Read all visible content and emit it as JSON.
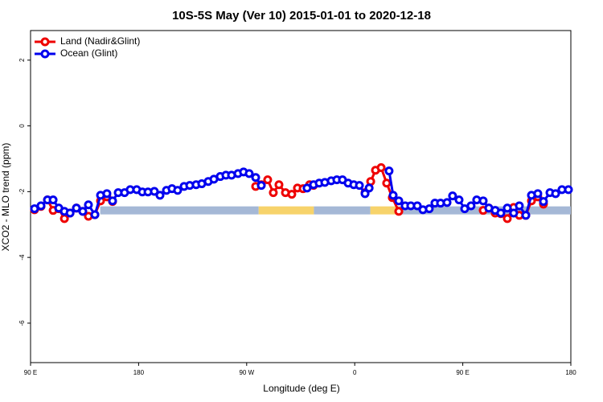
{
  "chart_data": {
    "type": "line",
    "title": "10S-5S May (Ver 10)   2015-01-01 to 2020-12-18",
    "x_label": "Longitude (deg E)",
    "y_label": "XCO2 - MLO trend (ppm)",
    "xlim": [
      90,
      540
    ],
    "xticks": [
      {
        "value": 90,
        "label": "90 E"
      },
      180,
      {
        "value": 270,
        "label": "90 W"
      },
      {
        "value": 360,
        "label": "0"
      },
      {
        "value": 450,
        "label": "90 E"
      },
      {
        "value": 540,
        "label": "180"
      }
    ],
    "ylim": [
      -7.2,
      2.9
    ],
    "yticks": [
      2,
      0,
      -2,
      -4,
      -6
    ],
    "legend": "top-left",
    "band_y": -2.57,
    "bands": [
      {
        "start": 148,
        "end": 280,
        "color": "#a5b8d6"
      },
      {
        "start": 280,
        "end": 326,
        "color": "#f7d36b"
      },
      {
        "start": 326,
        "end": 373,
        "color": "#a5b8d6"
      },
      {
        "start": 373,
        "end": 396,
        "color": "#f7d36b"
      },
      {
        "start": 396,
        "end": 540,
        "color": "#a5b8d6"
      }
    ],
    "series": [
      {
        "name": "Land (Nadir&Glint)",
        "color": "#ee0000",
        "x": [
          93.3,
          98.7,
          104.1,
          108.8,
          113.5,
          118.2,
          122.9,
          128.2,
          133.5,
          138.2,
          143.6,
          148.3,
          153.6,
          158.3,
          null,
          277.5,
          282.2,
          287.5,
          292.2,
          296.9,
          302.3,
          307.6,
          312.3,
          317.0,
          322.4,
          325.7,
          null,
          368.6,
          373.3,
          377.3,
          382.0,
          386.6,
          391.3,
          396.7,
          null,
          467.0,
          471.7,
          477.0,
          481.7,
          487.1,
          492.4,
          497.1,
          502.5,
          507.2,
          512.5,
          517.2
        ],
        "values": [
          -2.55,
          -2.45,
          -2.25,
          -2.57,
          -2.52,
          -2.82,
          -2.65,
          -2.5,
          -2.6,
          -2.75,
          -2.7,
          -2.28,
          -2.16,
          -2.3,
          null,
          -1.84,
          -1.79,
          -1.64,
          -2.03,
          -1.79,
          -2.03,
          -2.08,
          -1.89,
          -1.91,
          -1.79,
          -1.81,
          null,
          -2.03,
          -1.69,
          -1.35,
          -1.27,
          -1.74,
          -2.18,
          -2.6,
          null,
          -2.57,
          -2.5,
          -2.65,
          -2.67,
          -2.82,
          -2.48,
          -2.72,
          -2.72,
          -2.28,
          -2.16,
          -2.38
        ]
      },
      {
        "name": "Ocean (Glint)",
        "color": "#0000ee",
        "x": [
          93.3,
          98.7,
          104.1,
          108.8,
          113.5,
          118.2,
          122.9,
          128.2,
          133.5,
          138.2,
          143.6,
          148.3,
          153.6,
          158.3,
          163.0,
          168.3,
          173.0,
          178.4,
          183.1,
          187.8,
          193.1,
          197.8,
          203.2,
          207.8,
          212.5,
          217.9,
          222.6,
          227.9,
          232.6,
          238.0,
          242.7,
          248.0,
          252.7,
          257.4,
          262.8,
          267.4,
          272.1,
          277.5,
          282.2,
          null,
          320.3,
          325.7,
          330.4,
          335.1,
          340.4,
          345.1,
          349.8,
          354.5,
          359.2,
          363.9,
          368.6,
          372.0,
          null,
          388.6,
          392.0,
          396.7,
          402.0,
          406.7,
          412.1,
          416.8,
          422.1,
          426.8,
          431.5,
          436.9,
          441.5,
          446.9,
          451.6,
          456.9,
          461.6,
          467.0,
          471.7,
          477.0,
          481.7,
          487.1,
          492.4,
          497.1,
          502.5,
          507.2,
          512.5,
          517.2,
          522.6,
          527.3,
          532.6,
          538.0
        ],
        "values": [
          -2.52,
          -2.43,
          -2.25,
          -2.25,
          -2.5,
          -2.6,
          -2.65,
          -2.5,
          -2.6,
          -2.4,
          -2.7,
          -2.11,
          -2.06,
          -2.28,
          -2.03,
          -2.03,
          -1.94,
          -1.94,
          -2.01,
          -2.01,
          -1.99,
          -2.11,
          -1.96,
          -1.91,
          -1.96,
          -1.84,
          -1.81,
          -1.79,
          -1.76,
          -1.69,
          -1.62,
          -1.54,
          -1.5,
          -1.5,
          -1.45,
          -1.4,
          -1.45,
          -1.57,
          -1.81,
          null,
          -1.89,
          -1.79,
          -1.74,
          -1.72,
          -1.67,
          -1.64,
          -1.64,
          -1.74,
          -1.79,
          -1.81,
          -2.06,
          -1.89,
          null,
          -1.37,
          -2.11,
          -2.28,
          -2.43,
          -2.43,
          -2.43,
          -2.55,
          -2.52,
          -2.35,
          -2.35,
          -2.33,
          -2.13,
          -2.25,
          -2.52,
          -2.43,
          -2.25,
          -2.28,
          -2.5,
          -2.57,
          -2.65,
          -2.5,
          -2.65,
          -2.43,
          -2.72,
          -2.11,
          -2.06,
          -2.3,
          -2.03,
          -2.06,
          -1.94,
          -1.94
        ]
      }
    ]
  }
}
